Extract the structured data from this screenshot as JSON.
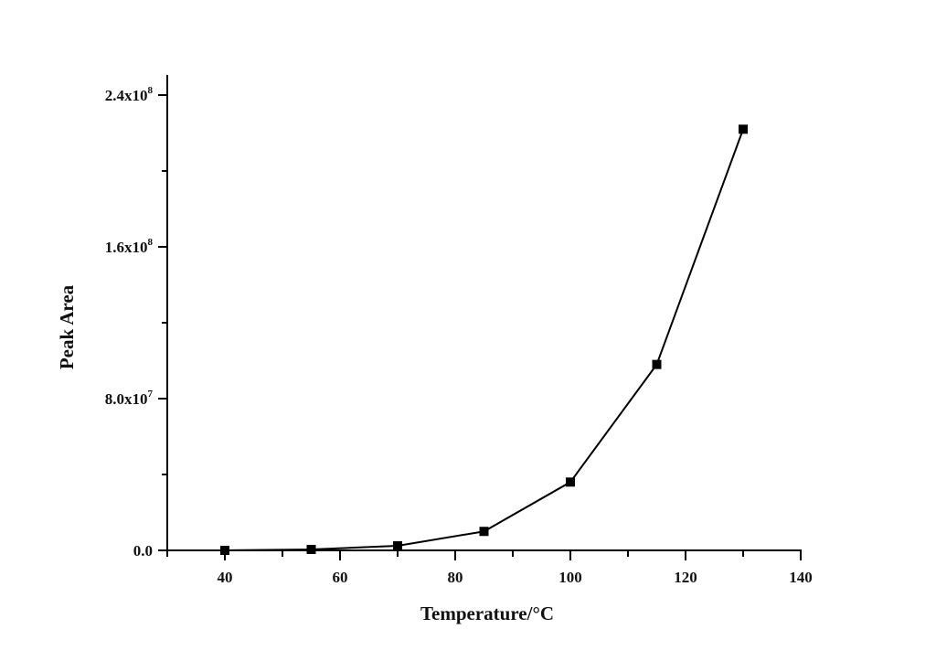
{
  "chart_data": {
    "type": "line",
    "title": "",
    "xlabel": "Temperature/°C",
    "ylabel": "Peak Area",
    "xlim": [
      30,
      140
    ],
    "ylim": [
      0,
      240000000
    ],
    "x_ticks": [
      40,
      60,
      80,
      100,
      120,
      140
    ],
    "x_tick_labels": [
      "40",
      "60",
      "80",
      "100",
      "120",
      "140"
    ],
    "y_ticks": [
      0,
      80000000,
      160000000,
      240000000
    ],
    "y_tick_labels": [
      {
        "mantissa": "0.0",
        "exp": ""
      },
      {
        "mantissa": "8.0x10",
        "exp": "7"
      },
      {
        "mantissa": "1.6x10",
        "exp": "8"
      },
      {
        "mantissa": "2.4x10",
        "exp": "8"
      }
    ],
    "grid": false,
    "legend": null,
    "marker": "square",
    "series": [
      {
        "name": "Peak Area",
        "color": "#000000",
        "x": [
          40,
          55,
          70,
          85,
          100,
          115,
          130
        ],
        "values": [
          0,
          500000,
          2400000,
          10000000,
          36000000,
          98000000,
          222000000
        ]
      }
    ]
  }
}
